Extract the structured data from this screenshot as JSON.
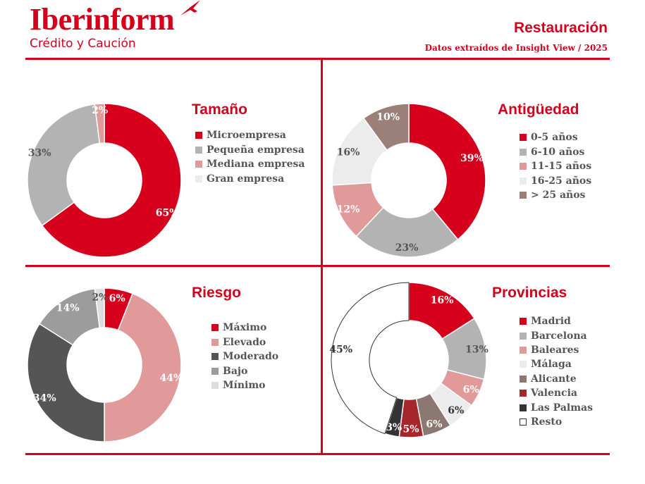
{
  "header": {
    "logo_name": "Iberinform",
    "logo_sub": "Crédito y Caución",
    "title": "Restauración",
    "subtitle": "Datos extraídos de Insight View / 2025"
  },
  "chart_data": [
    {
      "type": "pie",
      "title": "Tamaño",
      "categories": [
        "Microempresa",
        "Pequeña empresa",
        "Mediana empresa",
        "Gran empresa"
      ],
      "values": [
        65,
        33,
        2,
        0
      ],
      "labels": [
        "65%",
        "33%",
        "2%",
        ""
      ],
      "colors": [
        "#d6001c",
        "#b3b3b3",
        "#e09a9a",
        "#ececec"
      ],
      "label_colors": [
        "#ffffff",
        "#555555",
        "#ffffff",
        "#555555"
      ],
      "legend": "right"
    },
    {
      "type": "pie",
      "title": "Antigüedad",
      "categories": [
        "0-5 años",
        "6-10 años",
        "11-15 años",
        "16-25 años",
        "> 25 años"
      ],
      "values": [
        39,
        23,
        12,
        16,
        10
      ],
      "labels": [
        "39%",
        "23%",
        "12%",
        "16%",
        "10%"
      ],
      "colors": [
        "#d6001c",
        "#b3b3b3",
        "#e09a9a",
        "#ececec",
        "#9a8078"
      ],
      "label_colors": [
        "#ffffff",
        "#555555",
        "#ffffff",
        "#555555",
        "#ffffff"
      ],
      "legend": "right"
    },
    {
      "type": "pie",
      "title": "Riesgo",
      "categories": [
        "Máximo",
        "Elevado",
        "Moderado",
        "Bajo",
        "Mínimo"
      ],
      "values": [
        6,
        44,
        34,
        14,
        2
      ],
      "labels": [
        "6%",
        "44%",
        "34%",
        "14%",
        "2%"
      ],
      "colors": [
        "#d6001c",
        "#e09a9a",
        "#555555",
        "#9c9c9c",
        "#dedede"
      ],
      "label_colors": [
        "#ffffff",
        "#ffffff",
        "#ffffff",
        "#ffffff",
        "#555555"
      ],
      "legend": "right"
    },
    {
      "type": "pie",
      "title": "Provincias",
      "categories": [
        "Madrid",
        "Barcelona",
        "Baleares",
        "Málaga",
        "Alicante",
        "Valencia",
        "Las Palmas",
        "Resto"
      ],
      "values": [
        16,
        13,
        6,
        6,
        6,
        5,
        3,
        45
      ],
      "labels": [
        "16%",
        "13%",
        "6%",
        "6%",
        "6%",
        "5%",
        "3%",
        "45%"
      ],
      "colors": [
        "#d6001c",
        "#b3b3b3",
        "#e09a9a",
        "#ececec",
        "#8c7872",
        "#a5272c",
        "#333333",
        "#ffffff"
      ],
      "label_colors": [
        "#ffffff",
        "#555555",
        "#ffffff",
        "#333333",
        "#ffffff",
        "#ffffff",
        "#ffffff",
        "#333333"
      ],
      "legend": "right"
    }
  ]
}
